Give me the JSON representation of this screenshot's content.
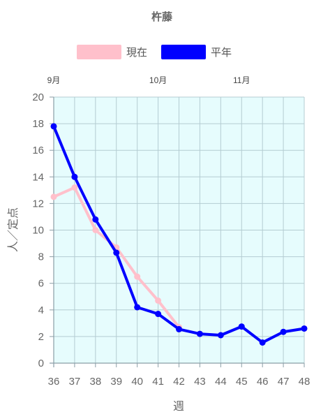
{
  "chart_data": {
    "type": "line",
    "title": "杵藤",
    "xlabel": "週",
    "ylabel": "人／定点",
    "x": [
      36,
      37,
      38,
      39,
      40,
      41,
      42,
      43,
      44,
      45,
      46,
      47,
      48
    ],
    "xlim": [
      36,
      48
    ],
    "ylim": [
      0,
      20
    ],
    "yticks": [
      0,
      2,
      4,
      6,
      8,
      10,
      12,
      14,
      16,
      18,
      20
    ],
    "month_labels": [
      {
        "label": "9月",
        "week": 36
      },
      {
        "label": "10月",
        "week": 41
      },
      {
        "label": "11月",
        "week": 45
      }
    ],
    "grid": true,
    "legend_position": "top",
    "plot_background": "#e6fcfd",
    "series": [
      {
        "name": "現在",
        "color": "#ffc0cb",
        "values": [
          12.5,
          13.2,
          10.0,
          8.7,
          6.5,
          4.7,
          2.7,
          null,
          null,
          null,
          null,
          null,
          null
        ]
      },
      {
        "name": "平年",
        "color": "#0000ff",
        "values": [
          17.8,
          14.0,
          10.8,
          8.3,
          4.2,
          3.7,
          2.55,
          2.2,
          2.1,
          2.75,
          1.55,
          2.35,
          2.6
        ]
      }
    ]
  }
}
